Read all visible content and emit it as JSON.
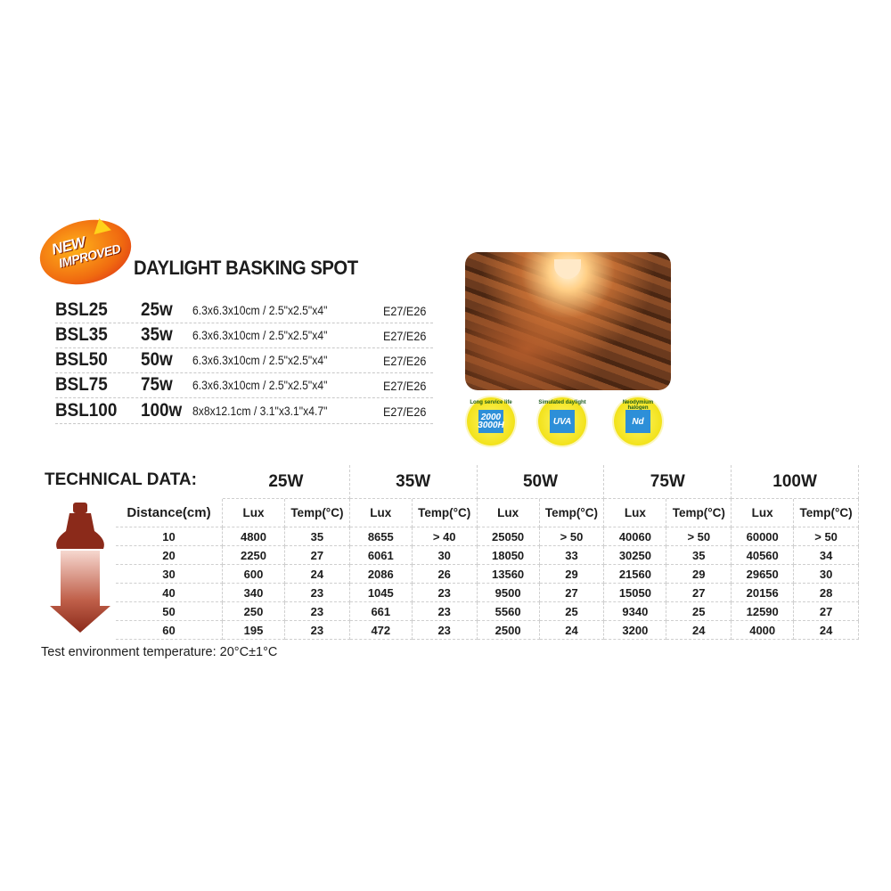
{
  "badge": {
    "line1": "NEW",
    "line2": "IMPROVED",
    "icon": "arrow-up-icon"
  },
  "title": "DAYLIGHT BASKING SPOT",
  "products": [
    {
      "model": "BSL25",
      "watt": "25w",
      "dims": "6.3x6.3x10cm / 2.5\"x2.5\"x4\"",
      "socket": "E27/E26"
    },
    {
      "model": "BSL35",
      "watt": "35w",
      "dims": "6.3x6.3x10cm / 2.5\"x2.5\"x4\"",
      "socket": "E27/E26"
    },
    {
      "model": "BSL50",
      "watt": "50w",
      "dims": "6.3x6.3x10cm / 2.5\"x2.5\"x4\"",
      "socket": "E27/E26"
    },
    {
      "model": "BSL75",
      "watt": "75w",
      "dims": "6.3x6.3x10cm / 2.5\"x2.5\"x4\"",
      "socket": "E27/E26"
    },
    {
      "model": "BSL100",
      "watt": "100w",
      "dims": "8x8x12.1cm / 3.1\"x3.1\"x4.7\"",
      "socket": "E27/E26"
    }
  ],
  "features": [
    {
      "caption": "Long service life",
      "inner": "2000 3000H",
      "icon": "shield-icon"
    },
    {
      "caption": "Simulated daylight",
      "inner": "UVA",
      "icon": "sun-icon"
    },
    {
      "caption": "Neodymium halogen",
      "inner": "Nd",
      "icon": "hexagon-icon"
    }
  ],
  "technical": {
    "label": "TECHNICAL DATA:",
    "distance_header": "Distance(cm)",
    "lux_header": "Lux",
    "temp_header": "Temp(°C)",
    "wattages": [
      "25W",
      "35W",
      "50W",
      "75W",
      "100W"
    ],
    "distances": [
      "10",
      "20",
      "30",
      "40",
      "50",
      "60"
    ],
    "rows": [
      [
        [
          "4800",
          "35"
        ],
        [
          "8655",
          "> 40"
        ],
        [
          "25050",
          "> 50"
        ],
        [
          "40060",
          "> 50"
        ],
        [
          "60000",
          "> 50"
        ]
      ],
      [
        [
          "2250",
          "27"
        ],
        [
          "6061",
          "30"
        ],
        [
          "18050",
          "33"
        ],
        [
          "30250",
          "35"
        ],
        [
          "40560",
          "34"
        ]
      ],
      [
        [
          "600",
          "24"
        ],
        [
          "2086",
          "26"
        ],
        [
          "13560",
          "29"
        ],
        [
          "21560",
          "29"
        ],
        [
          "29650",
          "30"
        ]
      ],
      [
        [
          "340",
          "23"
        ],
        [
          "1045",
          "23"
        ],
        [
          "9500",
          "27"
        ],
        [
          "15050",
          "27"
        ],
        [
          "20156",
          "28"
        ]
      ],
      [
        [
          "250",
          "23"
        ],
        [
          "661",
          "23"
        ],
        [
          "5560",
          "25"
        ],
        [
          "9340",
          "25"
        ],
        [
          "12590",
          "27"
        ]
      ],
      [
        [
          "195",
          "23"
        ],
        [
          "472",
          "23"
        ],
        [
          "2500",
          "24"
        ],
        [
          "3200",
          "24"
        ],
        [
          "4000",
          "24"
        ]
      ]
    ]
  },
  "note": "Test environment temperature: 20°C±1°C",
  "colors": {
    "arrow": "#8b2a1a",
    "badge": "#f06a10",
    "feature_badge": "#f2e21a",
    "feature_inner": "#2d8fd8"
  }
}
